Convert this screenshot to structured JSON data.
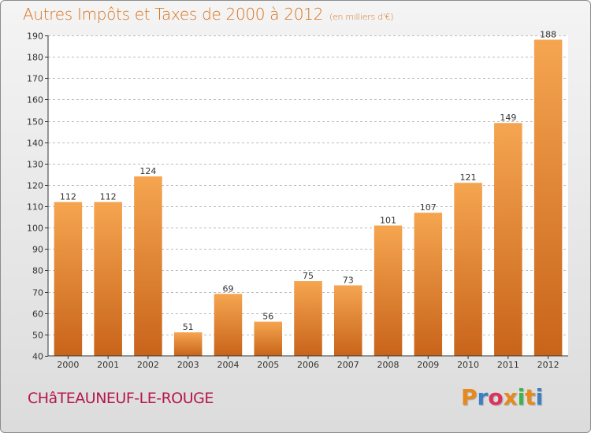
{
  "chart_data": {
    "type": "bar",
    "title": "Autres Impôts et Taxes de 2000 à 2012",
    "subtitle": "(en milliers d'€)",
    "categories": [
      "2000",
      "2001",
      "2002",
      "2003",
      "2004",
      "2005",
      "2006",
      "2007",
      "2008",
      "2009",
      "2010",
      "2011",
      "2012"
    ],
    "values": [
      112,
      112,
      124,
      51,
      69,
      56,
      75,
      73,
      101,
      107,
      121,
      149,
      188
    ],
    "ylim": [
      40,
      190
    ],
    "yticks": [
      40,
      50,
      60,
      70,
      80,
      90,
      100,
      110,
      120,
      130,
      140,
      150,
      160,
      170,
      180,
      190
    ],
    "grid": true,
    "bar_color_top": "#f5a550",
    "bar_color_bottom": "#c8641a"
  },
  "footer": {
    "commune": "CHâTEAUNEUF-LE-ROUGE",
    "logo": "Proxiti"
  },
  "colors": {
    "title": "#d9731e",
    "commune": "#b5174b"
  }
}
